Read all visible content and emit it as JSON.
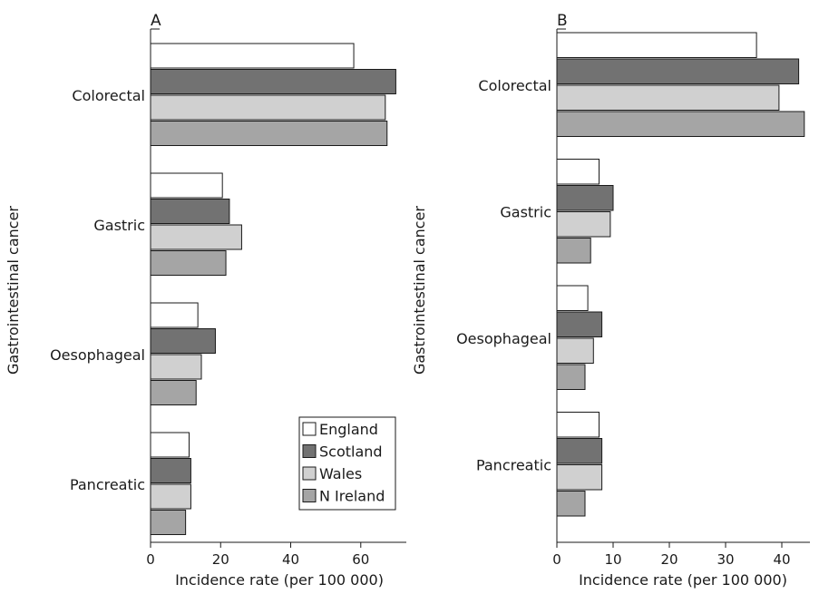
{
  "chart_data": [
    {
      "type": "bar",
      "orientation": "horizontal",
      "panel_label": "A",
      "categories": [
        "Colorectal",
        "Gastric",
        "Oesophageal",
        "Pancreatic"
      ],
      "series": [
        {
          "name": "England",
          "color": "#ffffff",
          "values": [
            58,
            20.5,
            13.5,
            11
          ]
        },
        {
          "name": "Scotland",
          "color": "#727272",
          "values": [
            70,
            22.5,
            18.5,
            11.5
          ]
        },
        {
          "name": "Wales",
          "color": "#d0d0d0",
          "values": [
            67,
            26,
            14.5,
            11.5
          ]
        },
        {
          "name": "N Ireland",
          "color": "#a5a5a5",
          "values": [
            67.5,
            21.5,
            13,
            10
          ]
        }
      ],
      "xlabel": "Incidence rate (per 100 000)",
      "ylabel": "Gastrointestinal cancer",
      "xlim": [
        0,
        73
      ],
      "xticks": [
        0,
        20,
        40,
        60
      ],
      "legend": {
        "position": "bottom-right",
        "entries": [
          "England",
          "Scotland",
          "Wales",
          "N Ireland"
        ]
      },
      "grid": false
    },
    {
      "type": "bar",
      "orientation": "horizontal",
      "panel_label": "B",
      "categories": [
        "Colorectal",
        "Gastric",
        "Oesophageal",
        "Pancreatic"
      ],
      "series": [
        {
          "name": "England",
          "color": "#ffffff",
          "values": [
            35.5,
            7.5,
            5.5,
            7.5
          ]
        },
        {
          "name": "Scotland",
          "color": "#727272",
          "values": [
            43,
            10,
            8,
            8
          ]
        },
        {
          "name": "Wales",
          "color": "#d0d0d0",
          "values": [
            39.5,
            9.5,
            6.5,
            8
          ]
        },
        {
          "name": "N Ireland",
          "color": "#a5a5a5",
          "values": [
            44,
            6,
            5,
            5
          ]
        }
      ],
      "xlabel": "Incidence rate (per 100 000)",
      "ylabel": "Gastrointestinal cancer",
      "xlim": [
        0,
        45
      ],
      "xticks": [
        0,
        10,
        20,
        30,
        40
      ],
      "grid": false
    }
  ]
}
